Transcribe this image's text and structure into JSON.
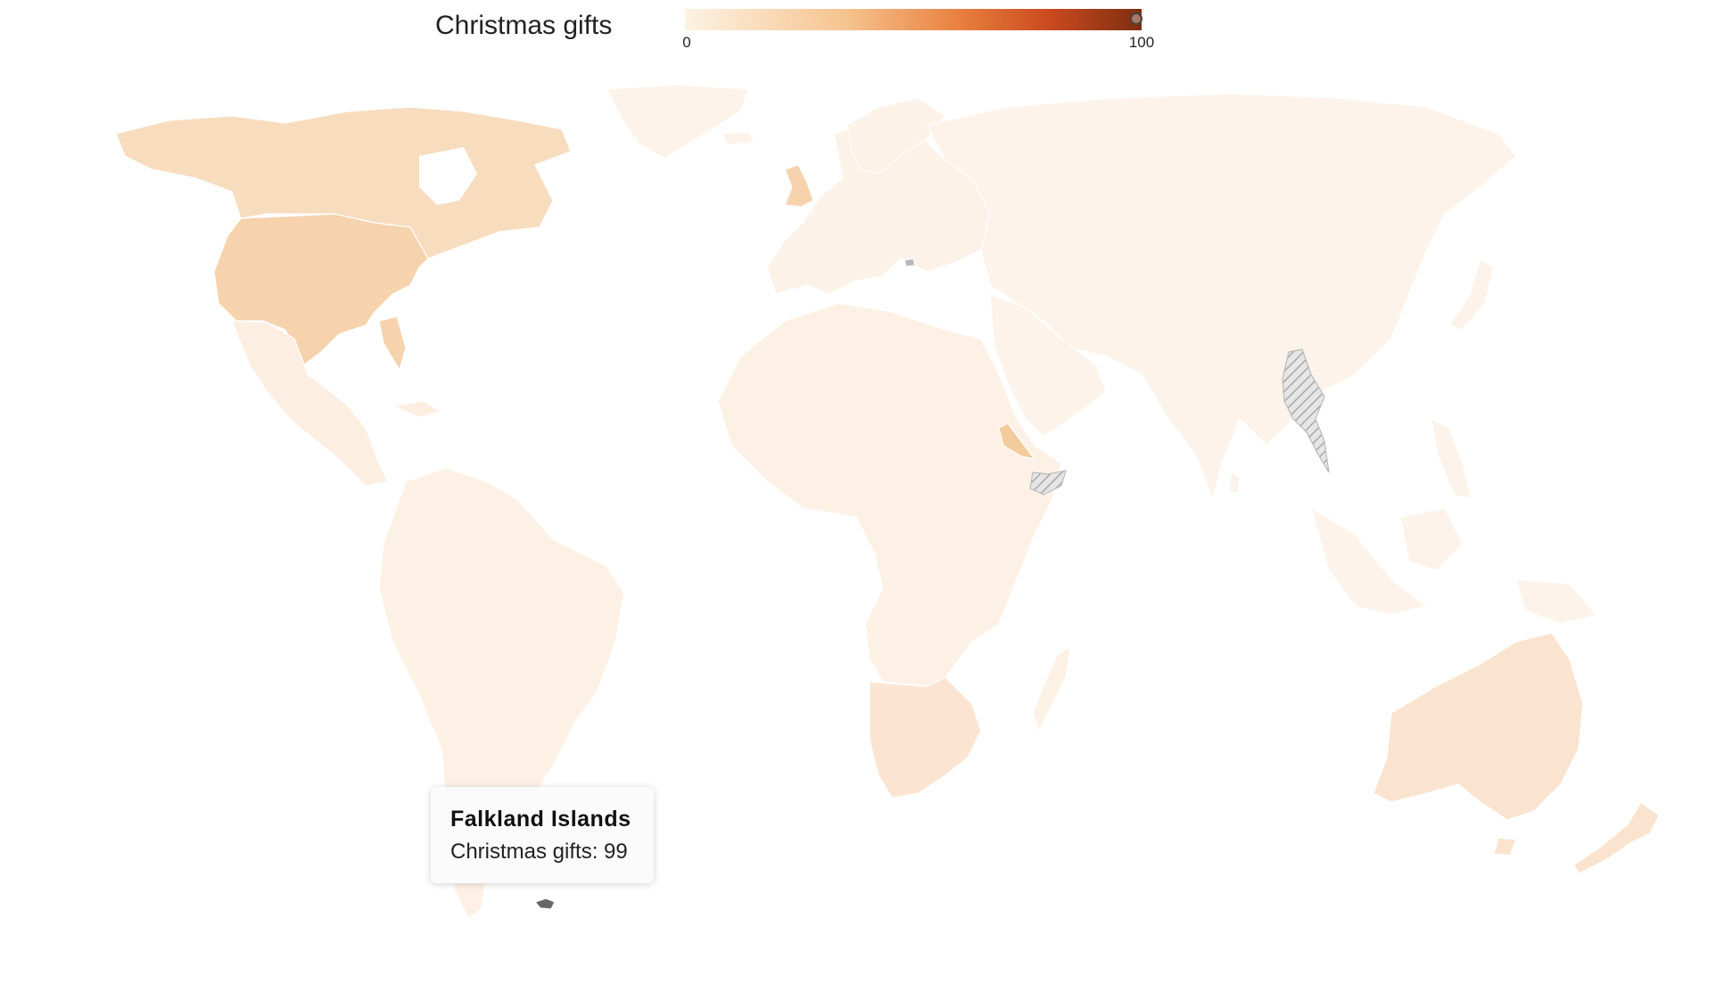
{
  "legend": {
    "title": "Christmas gifts",
    "min_label": "0",
    "max_label": "100",
    "hover_value": 99,
    "color_scale": [
      "#fdf2e4",
      "#f6c48f",
      "#e9803f",
      "#c94a1e",
      "#7e2d10"
    ]
  },
  "map": {
    "no_data_color": "#cfcfcf",
    "highlight_color": "#666666",
    "regions": [
      {
        "name": "North America",
        "color": "#f8dcbe"
      },
      {
        "name": "United States",
        "color": "#f6d2ad"
      },
      {
        "name": "Mexico & Central America",
        "color": "#fdeee2"
      },
      {
        "name": "South America",
        "color": "#fdf1e6"
      },
      {
        "name": "Greenland",
        "color": "#fdf3ea"
      },
      {
        "name": "Europe",
        "color": "#fdf2e8"
      },
      {
        "name": "United Kingdom",
        "color": "#f6d2ad"
      },
      {
        "name": "Russia & Asia",
        "color": "#fdf3ea"
      },
      {
        "name": "Africa",
        "color": "#fdf1e6"
      },
      {
        "name": "Southern Africa",
        "color": "#fbe5d2"
      },
      {
        "name": "Eritrea",
        "color": "#f3cc9e"
      },
      {
        "name": "Australia",
        "color": "#fae4cf"
      },
      {
        "name": "New Zealand",
        "color": "#fae4cf"
      },
      {
        "name": "Southeast Asia",
        "color": "#fdf3ea"
      },
      {
        "name": "Myanmar",
        "color": "no-data"
      },
      {
        "name": "Somalia",
        "color": "no-data"
      },
      {
        "name": "Falkland Islands",
        "color": "#666666"
      }
    ]
  },
  "tooltip": {
    "country": "Falkland Islands",
    "metric_text": "Christmas gifts: 99"
  }
}
